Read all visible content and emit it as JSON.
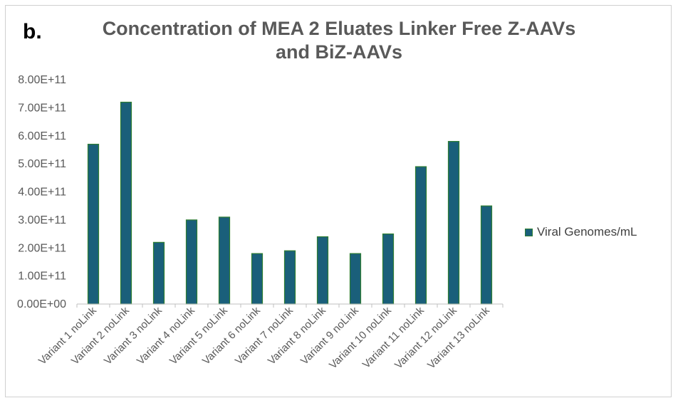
{
  "panel_label": "b.",
  "colors": {
    "bar_fill": "#1a5f7a",
    "bar_stroke": "#2e7d32",
    "axis": "#bfbfbf",
    "text": "#595959"
  },
  "chart_data": {
    "type": "bar",
    "title_line1": "Concentration of MEA 2 Eluates Linker Free Z-AAVs",
    "title_line2": "and BiZ-AAVs",
    "xlabel": "",
    "ylabel": "",
    "categories": [
      "Variant 1 noLink",
      "Variant 2 noLink",
      "Variant 3 noLink",
      "Variant 4 noLink",
      "Variant 5 noLink",
      "Variant 6 noLink",
      "Variant 7 noLink",
      "Variant 8 noLink",
      "Variant 9 noLink",
      "Variant 10 noLink",
      "Variant 11 noLink",
      "Variant 12 noLink",
      "Variant 13 noLink"
    ],
    "series": [
      {
        "name": "Viral Genomes/mL",
        "values": [
          570000000000.0,
          720000000000.0,
          220000000000.0,
          300000000000.0,
          310000000000.0,
          180000000000.0,
          190000000000.0,
          240000000000.0,
          180000000000.0,
          250000000000.0,
          490000000000.0,
          580000000000.0,
          350000000000.0
        ]
      }
    ],
    "ylim": [
      0,
      800000000000.0
    ],
    "yticks": [
      "0.00E+00",
      "1.00E+11",
      "2.00E+11",
      "3.00E+11",
      "4.00E+11",
      "5.00E+11",
      "6.00E+11",
      "7.00E+11",
      "8.00E+11"
    ],
    "grid": false,
    "legend_position": "right"
  }
}
